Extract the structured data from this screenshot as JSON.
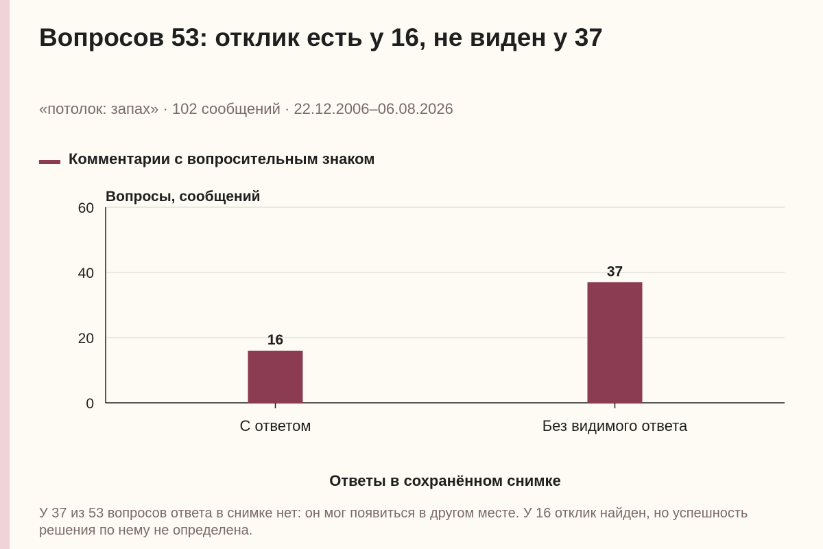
{
  "title": "Вопросов 53: отклик есть у 16, не виден у 37",
  "subtitle": "«потолок: запах» · 102 сообщений · 22.12.2006–06.08.2026",
  "footnote": "У 37 из 53 вопросов ответа в снимке нет: он мог появиться в другом месте. У 16 отклик найден, но успешность решения по нему не определена.",
  "colors": {
    "bar": "#8b3b52",
    "background": "#fdfbf4",
    "grid": "#d9d6ce",
    "axis": "#1f1f1f"
  },
  "chart_data": {
    "type": "bar",
    "categories": [
      "С ответом",
      "Без видимого ответа"
    ],
    "series": [
      {
        "name": "Комментарии с вопросительным знаком",
        "values": [
          16,
          37
        ]
      }
    ],
    "data_labels": [
      "16",
      "37"
    ],
    "ylabel": "Вопросы, сообщений",
    "xlabel": "Ответы в сохранённом снимке",
    "ylim": [
      0,
      60
    ],
    "yticks": [
      0,
      20,
      40,
      60
    ],
    "grid": true,
    "legend_position": "top-left"
  }
}
